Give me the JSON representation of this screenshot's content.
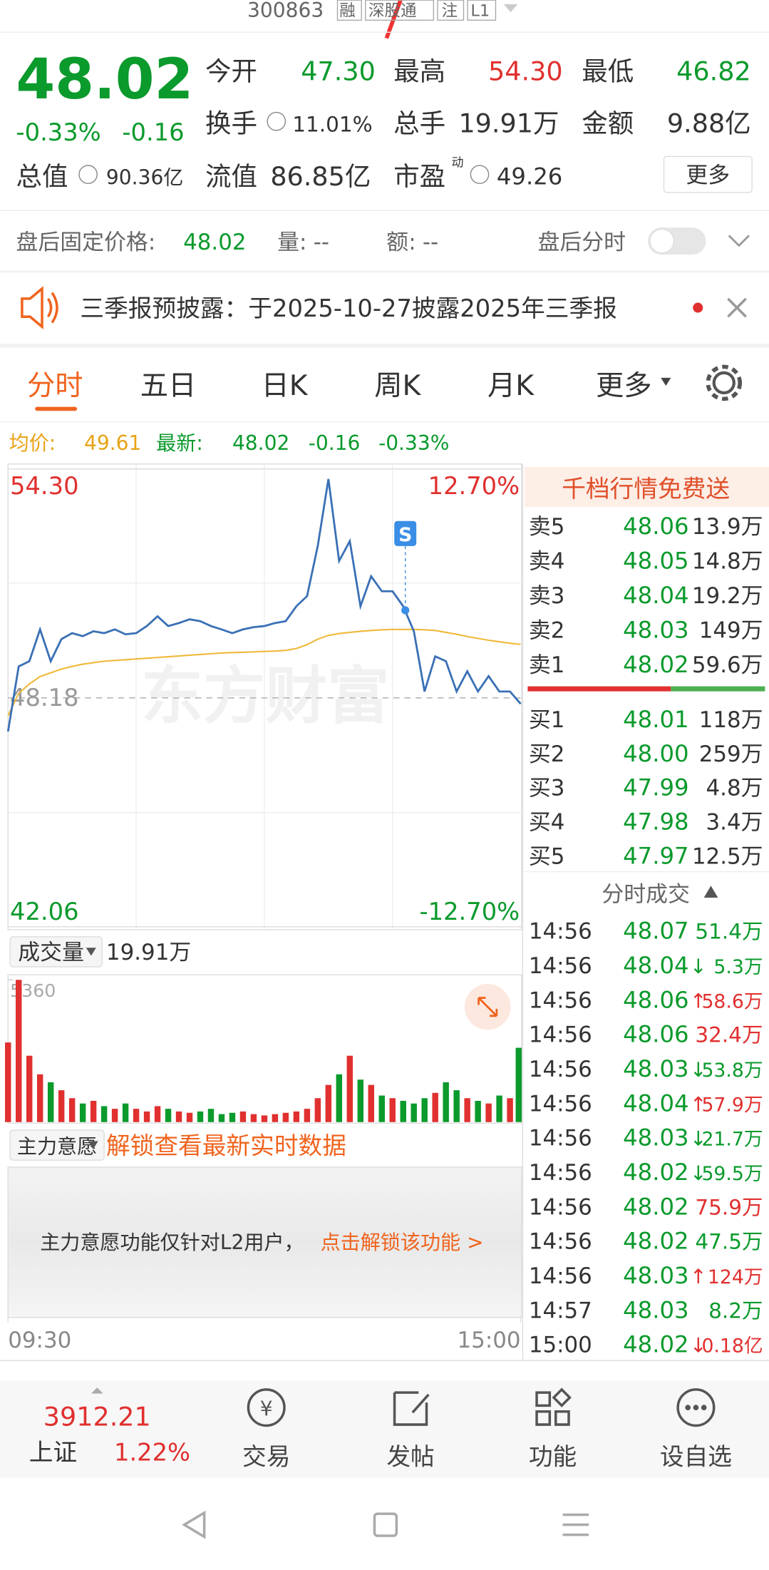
{
  "header": {
    "code": "300863",
    "tags": [
      "融",
      "深股通",
      "注",
      "L1"
    ]
  },
  "quote": {
    "price": "48.02",
    "pct": "-0.33%",
    "chg": "-0.16",
    "more": "更多",
    "pe_tag": "动",
    "fields": [
      {
        "label": "今开",
        "value": "47.30"
      },
      {
        "label": "最高",
        "value": "54.30"
      },
      {
        "label": "最低",
        "value": "46.82"
      },
      {
        "label": "换手",
        "value": "11.01%"
      },
      {
        "label": "总手",
        "value": "19.91万"
      },
      {
        "label": "金额",
        "value": "9.88亿"
      },
      {
        "label": "总值",
        "value": "90.36亿"
      },
      {
        "label": "流值",
        "value": "86.85亿"
      },
      {
        "label": "市盈",
        "value": "49.26"
      }
    ]
  },
  "after_hours": {
    "label": "盘后固定价格:",
    "price": "48.02",
    "vol_label": "量:",
    "vol": "--",
    "amt_label": "额:",
    "amt": "--",
    "toggle_label": "盘后分时"
  },
  "notice": "三季报预披露：于2025-10-27披露2025年三季报",
  "tabs": [
    "分时",
    "五日",
    "日K",
    "周K",
    "月K",
    "更多"
  ],
  "legend": {
    "avg_label": "均价:",
    "avg": "49.61",
    "latest_label": "最新:",
    "latest": "48.02",
    "chg": "-0.16",
    "pct": "-0.33%"
  },
  "chart_data": [
    {
      "type": "line",
      "watermark": "东方财富",
      "x": [
        0,
        5,
        10,
        15,
        20,
        25,
        30,
        35,
        40,
        45,
        50,
        55,
        60,
        65,
        70,
        75,
        80,
        85,
        90,
        95,
        100,
        105,
        110,
        115,
        120,
        125,
        130,
        135,
        140,
        145,
        150,
        155,
        160,
        165,
        170,
        175,
        180,
        185,
        190,
        195,
        200,
        205,
        210,
        215,
        220,
        225,
        230,
        235,
        240
      ],
      "xlim": [
        0,
        240
      ],
      "xticks": [
        {
          "value": 0,
          "label": "09:30"
        },
        {
          "value": 240,
          "label": "15:00"
        }
      ],
      "ylim": [
        42.06,
        54.3
      ],
      "yticks": [
        {
          "value": 54.3,
          "label": "54.30"
        },
        48.18,
        42.06
      ],
      "y2lim": [
        -12.7,
        12.7
      ],
      "y2ticks": [
        {
          "value": 12.7,
          "label": "12.70%"
        },
        {
          "value": -12.7,
          "label": "-12.70%"
        }
      ],
      "series": [
        {
          "color": "#3a70b5",
          "values": [
            47.28,
            49.02,
            49.16,
            50.01,
            49.16,
            49.75,
            49.91,
            49.83,
            49.96,
            49.91,
            50.01,
            49.88,
            49.91,
            50.1,
            50.36,
            50.1,
            50.18,
            50.28,
            50.23,
            50.1,
            50.01,
            49.91,
            50.01,
            50.07,
            50.1,
            50.18,
            50.23,
            50.63,
            50.9,
            52.24,
            54.03,
            51.84,
            52.37,
            50.63,
            51.43,
            51.03,
            51.03,
            50.63,
            49.96,
            48.35,
            49.29,
            49.16,
            48.35,
            48.89,
            48.35,
            48.76,
            48.35,
            48.35,
            48.02
          ]
        },
        {
          "color": "#f0b93a",
          "values": [
            47.7,
            48.3,
            48.55,
            48.75,
            48.85,
            48.95,
            49.02,
            49.08,
            49.12,
            49.16,
            49.18,
            49.2,
            49.22,
            49.24,
            49.26,
            49.28,
            49.3,
            49.32,
            49.34,
            49.36,
            49.38,
            49.39,
            49.4,
            49.41,
            49.42,
            49.43,
            49.45,
            49.5,
            49.6,
            49.75,
            49.85,
            49.9,
            49.93,
            49.96,
            49.98,
            50.0,
            50.01,
            50.01,
            50.01,
            50.0,
            49.98,
            49.93,
            49.88,
            49.82,
            49.77,
            49.72,
            49.68,
            49.64,
            49.61
          ]
        }
      ],
      "annotations": [
        {
          "text": "S",
          "x": 186,
          "y": 50.52
        }
      ]
    },
    {
      "type": "bar",
      "label": "成交量",
      "total": "19.91万",
      "ylim": [
        0,
        5360
      ],
      "yticks": [
        5360
      ],
      "up_color": "#e0302f",
      "down_color": "#0b9a2c",
      "values": [
        3000,
        5360,
        2500,
        1800,
        1500,
        1200,
        900,
        700,
        800,
        600,
        500,
        700,
        500,
        400,
        600,
        500,
        400,
        350,
        400,
        500,
        300,
        350,
        400,
        300,
        250,
        300,
        350,
        400,
        500,
        900,
        1400,
        1800,
        2500,
        1600,
        1400,
        1000,
        900,
        800,
        700,
        900,
        1100,
        1500,
        1200,
        900,
        800,
        700,
        1000,
        900,
        2800
      ]
    }
  ],
  "order_book": {
    "title": "千档行情免费送",
    "asks": [
      {
        "label": "卖5",
        "price": "48.06",
        "vol": "13.9万"
      },
      {
        "label": "卖4",
        "price": "48.05",
        "vol": "14.8万"
      },
      {
        "label": "卖3",
        "price": "48.04",
        "vol": "19.2万"
      },
      {
        "label": "卖2",
        "price": "48.03",
        "vol": "149万"
      },
      {
        "label": "卖1",
        "price": "48.02",
        "vol": "59.6万"
      }
    ],
    "bids": [
      {
        "label": "买1",
        "price": "48.01",
        "vol": "118万"
      },
      {
        "label": "买2",
        "price": "48.00",
        "vol": "259万"
      },
      {
        "label": "买3",
        "price": "47.99",
        "vol": "4.8万"
      },
      {
        "label": "买4",
        "price": "47.98",
        "vol": "3.4万"
      },
      {
        "label": "买5",
        "price": "47.97",
        "vol": "12.5万"
      }
    ]
  },
  "trades": {
    "title": "分时成交",
    "rows": [
      {
        "time": "14:56",
        "price": "48.07",
        "vol": "51.4万",
        "color": "#0b9a2c"
      },
      {
        "time": "14:56",
        "price": "48.04",
        "arrow": "↓",
        "vol": "5.3万",
        "color": "#0b9a2c"
      },
      {
        "time": "14:56",
        "price": "48.06",
        "arrow": "↑",
        "vol": "58.6万",
        "color": "#e0302f"
      },
      {
        "time": "14:56",
        "price": "48.06",
        "vol": "32.4万",
        "color": "#e0302f"
      },
      {
        "time": "14:56",
        "price": "48.03",
        "arrow": "↓",
        "vol": "53.8万",
        "color": "#0b9a2c"
      },
      {
        "time": "14:56",
        "price": "48.04",
        "arrow": "↑",
        "vol": "57.9万",
        "color": "#e0302f"
      },
      {
        "time": "14:56",
        "price": "48.03",
        "arrow": "↓",
        "vol": "21.7万",
        "color": "#0b9a2c"
      },
      {
        "time": "14:56",
        "price": "48.02",
        "arrow": "↓",
        "vol": "59.5万",
        "color": "#0b9a2c"
      },
      {
        "time": "14:56",
        "price": "48.02",
        "vol": "75.9万",
        "color": "#e0302f"
      },
      {
        "time": "14:56",
        "price": "48.02",
        "vol": "47.5万",
        "color": "#0b9a2c"
      },
      {
        "time": "14:56",
        "price": "48.03",
        "arrow": "↑",
        "vol": "124万",
        "color": "#e0302f"
      },
      {
        "time": "14:57",
        "price": "48.03",
        "vol": "8.2万",
        "color": "#0b9a2c"
      },
      {
        "time": "15:00",
        "price": "48.02",
        "arrow": "↓",
        "vol": "0.18亿",
        "color": "#e0302f"
      }
    ]
  },
  "main_intent": {
    "label": "主力意愿",
    "link": "解锁查看最新实时数据",
    "msg": "主力意愿功能仅针对L2用户，",
    "cta": "点击解锁该功能 >"
  },
  "bottom_bar": {
    "index": {
      "value": "3912.21",
      "name": "上证",
      "pct": "1.22%"
    },
    "nav": [
      "交易",
      "发帖",
      "功能",
      "设自选"
    ]
  }
}
